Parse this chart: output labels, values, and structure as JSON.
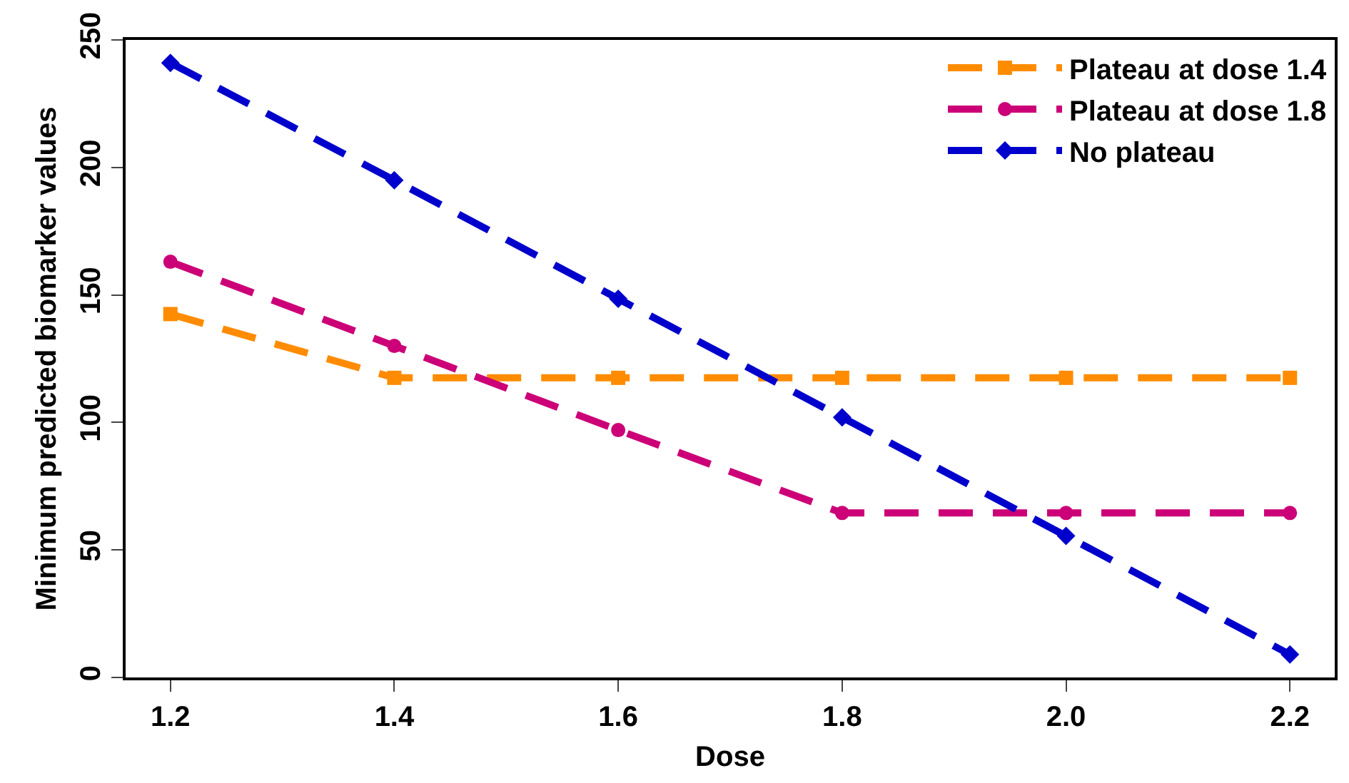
{
  "chart_data": {
    "type": "line",
    "xlabel": "Dose",
    "ylabel": "Minimum predicted biomarker values",
    "x": [
      1.2,
      1.4,
      1.6,
      1.8,
      2.0,
      2.2
    ],
    "series": [
      {
        "name": "Plateau at dose 1.4",
        "color": "#ff8c00",
        "marker": "square",
        "values": [
          142.5,
          117.5,
          117.5,
          117.5,
          117.5,
          117.5
        ]
      },
      {
        "name": "Plateau at dose 1.8",
        "color": "#cc0077",
        "marker": "circle",
        "values": [
          163,
          130,
          97,
          64.5,
          64.5,
          64.5
        ]
      },
      {
        "name": "No plateau",
        "color": "#0000cc",
        "marker": "diamond",
        "values": [
          241,
          195,
          148.5,
          102,
          55.5,
          9
        ]
      }
    ],
    "xlim": [
      1.16,
      2.24
    ],
    "xticks": [
      {
        "value": 1.2,
        "label": "1.2"
      },
      {
        "value": 1.4,
        "label": "1.4"
      },
      {
        "value": 1.6,
        "label": "1.6"
      },
      {
        "value": 1.8,
        "label": "1.8"
      },
      {
        "value": 2.0,
        "label": "2.0"
      },
      {
        "value": 2.2,
        "label": "2.2"
      }
    ],
    "ylim": [
      0,
      250
    ],
    "yticks": [
      0,
      50,
      100,
      150,
      200,
      250
    ],
    "line_style": "dashed",
    "legend": "top right",
    "grid": false
  }
}
